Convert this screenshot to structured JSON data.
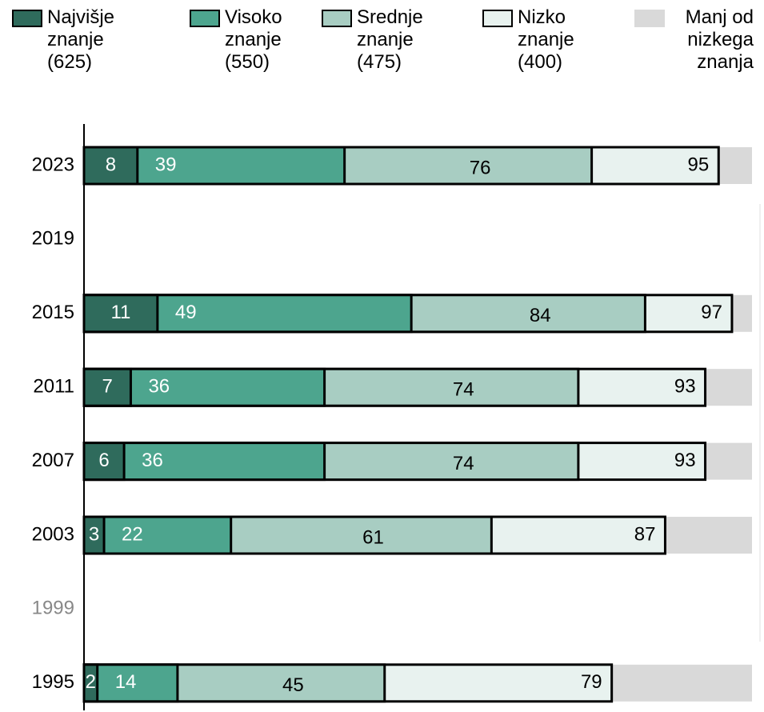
{
  "chart_data": {
    "type": "bar",
    "orientation": "horizontal",
    "categories": [
      "2023",
      "2019",
      "2015",
      "2011",
      "2007",
      "2003",
      "1999",
      "1995"
    ],
    "category_label_colors": [
      "#000000",
      "#000000",
      "#000000",
      "#000000",
      "#000000",
      "#000000",
      "#888888",
      "#000000"
    ],
    "series": [
      {
        "name": "Najvišje znanje (625)",
        "color": "#2f6b5c",
        "label_color": "#ffffff",
        "values": [
          8,
          null,
          11,
          7,
          6,
          3,
          null,
          2
        ]
      },
      {
        "name": "Visoko znanje (550)",
        "color": "#4da58e",
        "label_color": "#ffffff",
        "values": [
          39,
          null,
          49,
          36,
          36,
          22,
          null,
          14
        ]
      },
      {
        "name": "Srednje znanje (475)",
        "color": "#a8cdc2",
        "label_color": "#000000",
        "values": [
          76,
          null,
          84,
          74,
          74,
          61,
          null,
          45
        ]
      },
      {
        "name": "Nizko znanje (400)",
        "color": "#e8f2ef",
        "label_color": "#000000",
        "values": [
          95,
          null,
          97,
          93,
          93,
          87,
          null,
          79
        ]
      },
      {
        "name": "Manj od nizkega znanja",
        "color": "#d9d9d9"
      }
    ],
    "xlim": [
      0,
      100
    ]
  }
}
